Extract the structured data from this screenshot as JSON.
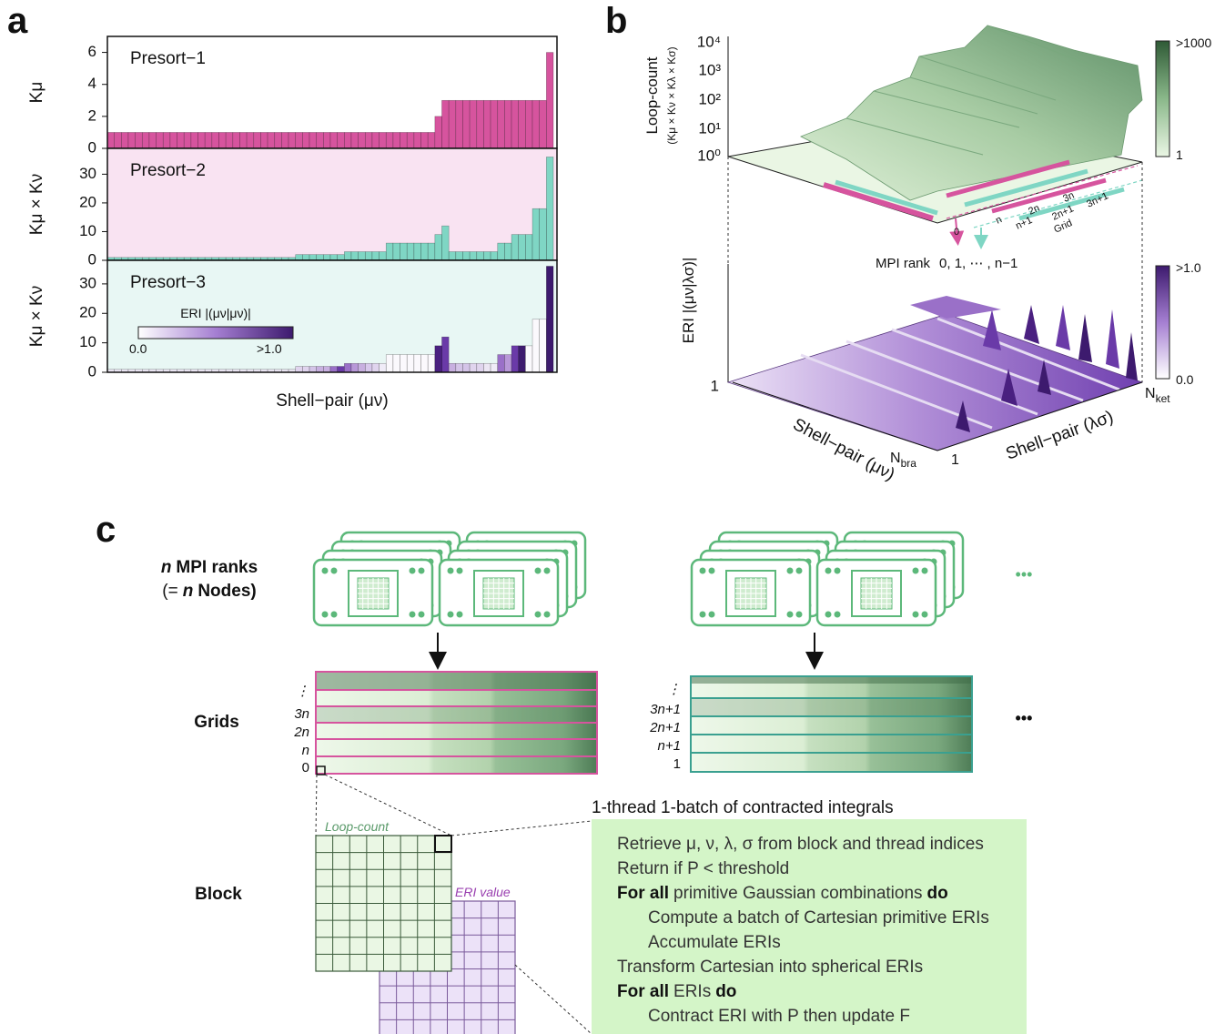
{
  "chart_data": [
    {
      "type": "bar",
      "title": "Presort−1",
      "y_label": "Kμ",
      "values": [
        1,
        1,
        1,
        1,
        1,
        1,
        1,
        1,
        1,
        1,
        1,
        1,
        1,
        1,
        1,
        1,
        1,
        1,
        1,
        1,
        1,
        1,
        1,
        1,
        1,
        1,
        1,
        1,
        1,
        1,
        1,
        1,
        1,
        1,
        1,
        1,
        1,
        1,
        1,
        1,
        1,
        1,
        1,
        1,
        1,
        1,
        1,
        2,
        3,
        3,
        3,
        3,
        3,
        3,
        3,
        3,
        3,
        3,
        3,
        3,
        3,
        3,
        3,
        6
      ],
      "color": "#d6549e",
      "background": "#ffffff",
      "ylim": [
        0,
        7
      ],
      "yticks": [
        0,
        2,
        4,
        6
      ]
    },
    {
      "type": "bar",
      "title": "Presort−2",
      "y_label": "Kμ × Kν",
      "values": [
        1,
        1,
        1,
        1,
        1,
        1,
        1,
        1,
        1,
        1,
        1,
        1,
        1,
        1,
        1,
        1,
        1,
        1,
        1,
        1,
        1,
        1,
        1,
        1,
        1,
        1,
        1,
        2,
        2,
        2,
        2,
        2,
        2,
        2,
        3,
        3,
        3,
        3,
        3,
        3,
        6,
        6,
        6,
        6,
        6,
        6,
        6,
        9,
        12,
        3,
        3,
        3,
        3,
        3,
        3,
        3,
        6,
        6,
        9,
        9,
        9,
        18,
        18,
        36
      ],
      "color": "#7fd6c4",
      "background": "#f9e3f2",
      "ylim": [
        0,
        39
      ],
      "yticks": [
        0,
        10,
        20,
        30
      ]
    },
    {
      "type": "bar",
      "title": "Presort−3",
      "y_label": "Kμ × Kν",
      "x_label": "Shell−pair (μν)",
      "values": [
        1,
        1,
        1,
        1,
        1,
        1,
        1,
        1,
        1,
        1,
        1,
        1,
        1,
        1,
        1,
        1,
        1,
        1,
        1,
        1,
        1,
        1,
        1,
        1,
        1,
        1,
        1,
        2,
        2,
        2,
        2,
        2,
        2,
        2,
        3,
        3,
        3,
        3,
        3,
        3,
        6,
        6,
        6,
        6,
        6,
        6,
        6,
        9,
        12,
        3,
        3,
        3,
        3,
        3,
        3,
        3,
        6,
        6,
        9,
        9,
        9,
        18,
        18,
        36
      ],
      "colors": [
        "#ece6f4",
        "#ece6f4",
        "#ece6f4",
        "#ece6f4",
        "#ece6f4",
        "#ece6f4",
        "#ece6f4",
        "#ece6f4",
        "#ece6f4",
        "#ece6f4",
        "#ece6f4",
        "#ece6f4",
        "#ece6f4",
        "#ece6f4",
        "#ece6f4",
        "#ece6f4",
        "#ece6f4",
        "#ece6f4",
        "#ece6f4",
        "#ece6f4",
        "#ece6f4",
        "#ece6f4",
        "#ece6f4",
        "#ece6f4",
        "#ece6f4",
        "#ece6f4",
        "#ece6f4",
        "#e0d4ee",
        "#e0d4ee",
        "#d4c4e8",
        "#c8b0e0",
        "#c8b0e0",
        "#9a70c8",
        "#6a3aa8",
        "#9a70c8",
        "#b898d8",
        "#c8b0e0",
        "#d8c8ec",
        "#e0d4ee",
        "#f0ecf8",
        "#fbf9fd",
        "#fbf9fd",
        "#fbf9fd",
        "#fbf9fd",
        "#fbf9fd",
        "#fbf9fd",
        "#fbf9fd",
        "#4a2080",
        "#6a3aa8",
        "#c8b0e0",
        "#d4c4e8",
        "#d4c4e8",
        "#e0d4ee",
        "#e0d4ee",
        "#ece6f4",
        "#f0ecf8",
        "#9a70c8",
        "#b898d8",
        "#6a3aa8",
        "#3d1a6e",
        "#fbf9fd",
        "#fbf9fd",
        "#fbf9fd",
        "#3d1a6e"
      ],
      "background": "#e8f7f4",
      "ylim": [
        0,
        38
      ],
      "yticks": [
        0,
        10,
        20,
        30
      ],
      "colorbar": {
        "title": "ERI |(μν|μν)|",
        "min_label": "0.0",
        "max_label": ">1.0"
      }
    }
  ],
  "panel_a": {
    "label": "a"
  },
  "panel_b": {
    "label": "b",
    "top": {
      "y_label": "Loop-count",
      "y_sublabel": "(Kμ × Kν × Kλ × Kσ)",
      "yticks": [
        "10⁴",
        "10³",
        "10²",
        "10¹",
        "10⁰"
      ],
      "colorbar_max": ">1000",
      "colorbar_min": "1",
      "grid_labels": [
        "0",
        "n",
        "n+1",
        "2n",
        "2n+1",
        "3n",
        "3n+1",
        "Grid"
      ],
      "mpi_rank": "MPI rank",
      "mpi_values": "0,  1,  ⋯ , n−1"
    },
    "bottom": {
      "y_label": "ERI |(μν|λσ)|",
      "y_tick": "1",
      "x_label": "Shell−pair (μν)",
      "z_label": "Shell−pair (λσ)",
      "n_bra": {
        "main": "N",
        "sub": "bra"
      },
      "start": "1",
      "n_ket": {
        "main": "N",
        "sub": "ket"
      },
      "colorbar_max": ">1.0",
      "colorbar_min": "0.0"
    }
  },
  "panel_c": {
    "label": "c",
    "ranks_line1": [
      "n",
      "MPI ranks"
    ],
    "ranks_line2": [
      "(=",
      "n",
      "Nodes)"
    ],
    "ellipsis": "•••",
    "grids": "Grids",
    "block": "Block",
    "left_rows": [
      "⋮",
      "3n",
      "2n",
      "n",
      "0"
    ],
    "right_rows": [
      "⋮",
      "3n+1",
      "2n+1",
      "n+1",
      "1"
    ],
    "loop_count": "Loop-count",
    "eri_value": "ERI value",
    "code_title": "1-thread 1-batch of contracted integrals",
    "code": [
      {
        "text": "Retrieve μ, ν, λ, σ  from block and thread indices"
      },
      {
        "text": "Return if P < threshold"
      },
      {
        "keyword": "For all",
        "text": "primitive Gaussian combinations",
        "end": "do"
      },
      {
        "text": "Compute a batch of Cartesian primitive ERIs"
      },
      {
        "text": "Accumulate ERIs"
      },
      {
        "text": "Transform Cartesian into spherical ERIs"
      },
      {
        "keyword": "For all",
        "text": "ERIs",
        "end": "do"
      },
      {
        "text": "Contract ERI with P then update F"
      }
    ]
  }
}
